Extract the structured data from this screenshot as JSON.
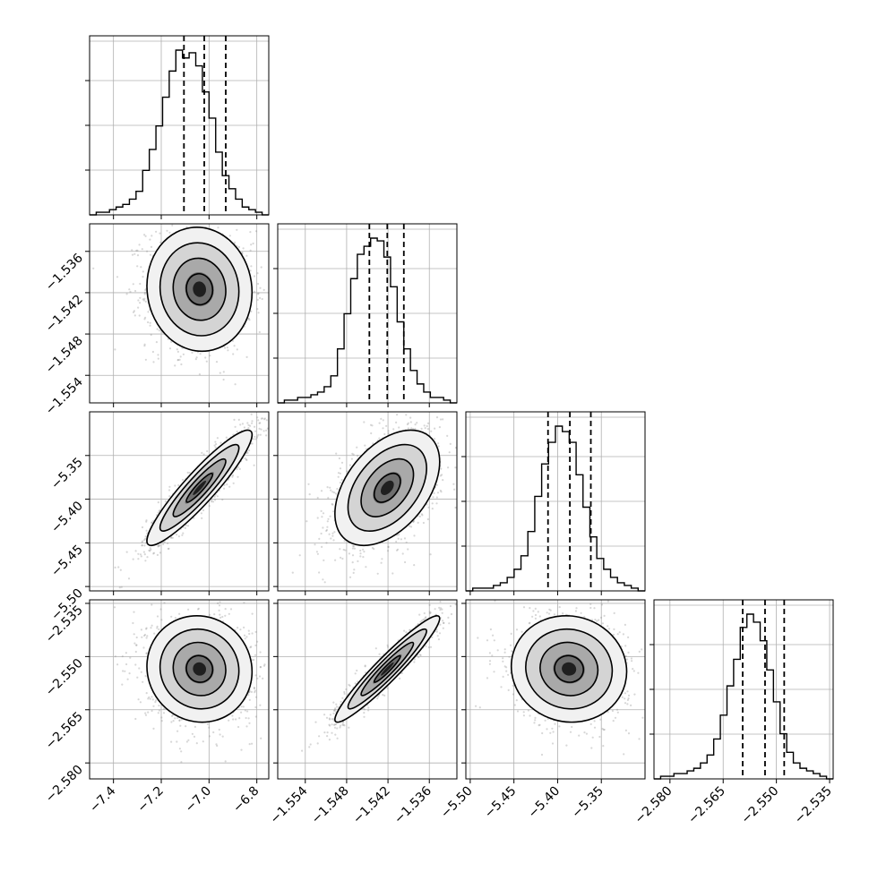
{
  "chart_data": {
    "type": "corner",
    "colors": {
      "line": "#000000",
      "grid": "#b0b0b0",
      "points": "#8c8c8c",
      "background": "#ffffff"
    },
    "grid": true,
    "parameters": [
      {
        "range": [
          -7.5,
          -6.75
        ],
        "ticks": [
          -7.4,
          -7.2,
          -7.0,
          -6.8
        ],
        "tick_labels": [
          "−7.4",
          "−7.2",
          "−7.0",
          "−6.8"
        ],
        "quantiles": [
          -7.105,
          -7.02,
          -6.93
        ],
        "hist": [
          0,
          1,
          1,
          2,
          3,
          4,
          6,
          9,
          17,
          25,
          34,
          45,
          55,
          63,
          60,
          62,
          57,
          47,
          37,
          24,
          15,
          10,
          6,
          3,
          2,
          1,
          0
        ]
      },
      {
        "range": [
          -1.558,
          -1.532
        ],
        "ticks": [
          -1.554,
          -1.548,
          -1.542,
          -1.536
        ],
        "tick_labels": [
          "−1.554",
          "−1.548",
          "−1.542",
          "−1.536"
        ],
        "quantiles": [
          -1.5447,
          -1.5421,
          -1.5397
        ],
        "hist": [
          0,
          1,
          1,
          2,
          2,
          3,
          4,
          6,
          10,
          20,
          33,
          46,
          55,
          58,
          61,
          60,
          54,
          43,
          30,
          20,
          12,
          7,
          4,
          2,
          2,
          1,
          0
        ]
      },
      {
        "range": [
          -5.505,
          -5.3
        ],
        "ticks": [
          -5.5,
          -5.45,
          -5.4,
          -5.35
        ],
        "tick_labels": [
          "−5.50",
          "−5.45",
          "−5.40",
          "−5.35"
        ],
        "quantiles": [
          -5.411,
          -5.386,
          -5.362
        ],
        "hist": [
          0,
          1,
          1,
          1,
          2,
          3,
          5,
          8,
          13,
          22,
          35,
          47,
          55,
          61,
          59,
          55,
          43,
          31,
          20,
          12,
          8,
          5,
          3,
          2,
          1,
          0
        ]
      },
      {
        "range": [
          -2.5845,
          -2.534
        ],
        "ticks": [
          -2.58,
          -2.565,
          -2.55,
          -2.535
        ],
        "tick_labels": [
          "−2.580",
          "−2.565",
          "−2.550",
          "−2.535"
        ],
        "quantiles": [
          -2.5595,
          -2.5532,
          -2.5478
        ],
        "hist": [
          0,
          1,
          1,
          2,
          2,
          3,
          4,
          6,
          9,
          15,
          24,
          35,
          45,
          57,
          62,
          59,
          52,
          41,
          29,
          17,
          10,
          6,
          4,
          3,
          2,
          1,
          0
        ]
      }
    ],
    "pairs": [
      {
        "x": 0,
        "y": 1,
        "center": [
          -7.04,
          -1.5415
        ],
        "spread": [
          0.11,
          0.0045
        ],
        "corr": -0.05
      },
      {
        "x": 0,
        "y": 2,
        "center": [
          -7.04,
          -5.387
        ],
        "spread": [
          0.11,
          0.033
        ],
        "corr": 0.92
      },
      {
        "x": 1,
        "y": 2,
        "center": [
          -1.5421,
          -5.387
        ],
        "spread": [
          0.0038,
          0.033
        ],
        "corr": 0.45
      },
      {
        "x": 0,
        "y": 3,
        "center": [
          -7.04,
          -2.5535
        ],
        "spread": [
          0.11,
          0.0075
        ],
        "corr": -0.05
      },
      {
        "x": 1,
        "y": 3,
        "center": [
          -1.5421,
          -2.5535
        ],
        "spread": [
          0.0038,
          0.0075
        ],
        "corr": 0.95
      },
      {
        "x": 2,
        "y": 3,
        "center": [
          -5.387,
          -2.5535
        ],
        "spread": [
          0.033,
          0.0075
        ],
        "corr": -0.05
      }
    ]
  }
}
